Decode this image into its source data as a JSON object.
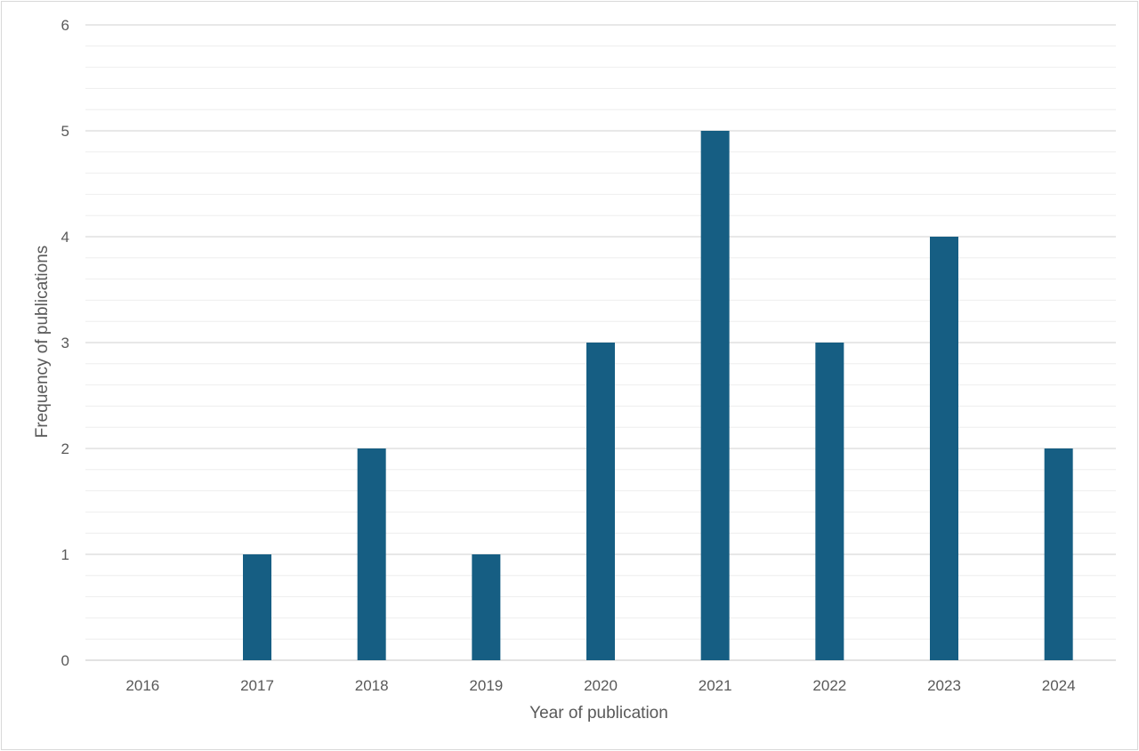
{
  "chart_data": {
    "type": "bar",
    "title": "",
    "xlabel": "Year of publication",
    "ylabel": "Frequency of publications",
    "categories": [
      "2016",
      "2017",
      "2018",
      "2019",
      "2020",
      "2021",
      "2022",
      "2023",
      "2024"
    ],
    "values": [
      0,
      1,
      2,
      1,
      3,
      5,
      3,
      4,
      2
    ],
    "ylim": [
      0,
      6
    ],
    "yticks": [
      "0",
      "1",
      "2",
      "3",
      "4",
      "5",
      "6"
    ],
    "grid": "on",
    "legend": "none",
    "bar_color": "#165e83",
    "gridline_color": "#d9d9d9",
    "minor_gridline_color": "#eeeeee"
  }
}
